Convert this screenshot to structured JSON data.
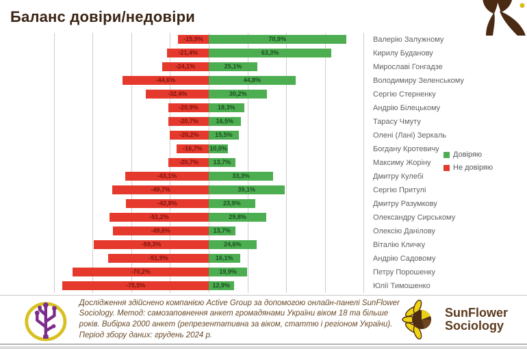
{
  "page": {
    "title": "Баланс довіри/недовіри"
  },
  "legend": {
    "trust_label": "Довіряю",
    "distrust_label": "Не довіряю"
  },
  "colors": {
    "trust_bar": "#4cae51",
    "distrust_bar": "#e5392d",
    "trust_value_text": "#1d4d20",
    "distrust_value_text": "#7e150d",
    "title_text": "#3a2414",
    "name_text": "#5f5f5f",
    "gridline": "#cdcdcd"
  },
  "chart_data": {
    "type": "bar",
    "orientation": "horizontal-diverging",
    "title": "Баланс довіри/недовіри",
    "grid": true,
    "legend_position": "right",
    "axis_ticks_pct": [
      -80,
      -60,
      -40,
      -20,
      0,
      20,
      40,
      60,
      80
    ],
    "categories": [
      "Валерію Залужному",
      "Кирилу Буданову",
      "Мирославі Гонгадзе",
      "Володимиру Зеленському",
      "Сергію Стерненку",
      "Андрію Білецькому",
      "Тарасу Чмуту",
      "Олені (Лані) Зеркаль",
      "Богдану Кротевичу",
      "Максиму Жоріну",
      "Дмитру Кулебі",
      "Сергію Притулі",
      "Дмитру Разумкову",
      "Олександру Сирському",
      "Олексію Данілову",
      "Віталію Кличку",
      "Андрію Садовому",
      "Петру Порошенку",
      "Юлії Тимошенко"
    ],
    "series": [
      {
        "name": "Довіряю",
        "direction": "positive",
        "values": [
          70.9,
          63.3,
          25.1,
          44.8,
          30.2,
          18.3,
          16.5,
          15.5,
          10.0,
          13.7,
          33.3,
          39.1,
          23.9,
          29.8,
          13.7,
          24.6,
          16.1,
          19.9,
          12.9
        ],
        "labels": [
          "70,9%",
          "63,3%",
          "25,1%",
          "44,8%",
          "30,2%",
          "18,3%",
          "16,5%",
          "15,5%",
          "10,0%",
          "13,7%",
          "33,3%",
          "39,1%",
          "23,9%",
          "29,8%",
          "13,7%",
          "24,6%",
          "16,1%",
          "19,9%",
          "12,9%"
        ]
      },
      {
        "name": "Не довіряю",
        "direction": "negative",
        "values": [
          15.9,
          21.4,
          24.1,
          44.6,
          32.4,
          20.9,
          20.7,
          20.2,
          16.7,
          20.7,
          43.1,
          49.7,
          42.8,
          51.2,
          49.6,
          59.3,
          51.9,
          70.2,
          75.5
        ],
        "labels": [
          "-15,9%",
          "-21,4%",
          "-24,1%",
          "-44,6%",
          "-32,4%",
          "-20,9%",
          "-20,7%",
          "-20,2%",
          "-16,7%",
          "-20,7%",
          "-43,1%",
          "-49,7%",
          "-42,8%",
          "-51,2%",
          "-49,6%",
          "-59,3%",
          "-51,9%",
          "-70,2%",
          "-75,5%"
        ]
      }
    ]
  },
  "footer": {
    "text": "Дослідження здійснено компанією Active Group за допомогою онлайн-панелі SunFlower Sociology. Метод: самозаповнення анкет громадянами України віком 18 та більше років. Вибірка 2000 анкет (репрезентативна за віком, статтю і регіоном України). Період збору даних: грудень 2024 р.",
    "sunflower_line1": "SunFlower",
    "sunflower_line2": "Sociology"
  }
}
